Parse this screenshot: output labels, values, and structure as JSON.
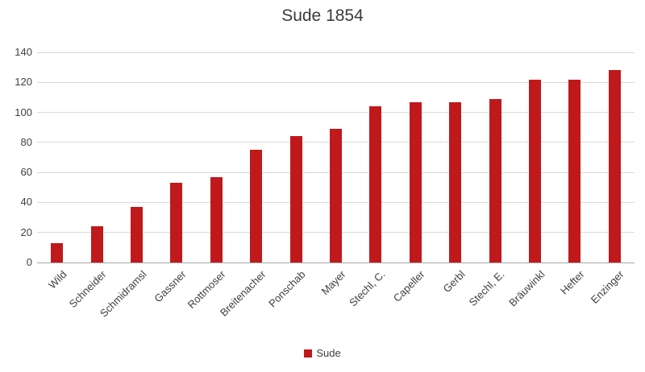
{
  "chart_data": {
    "type": "bar",
    "title": "Sude 1854",
    "series_name": "Sude",
    "categories": [
      "Wild",
      "Schneider",
      "Schmidramsl",
      "Gassner",
      "Rottmoser",
      "Breitenacher",
      "Ponschab",
      "Mayer",
      "Stechl, C.",
      "Capeller",
      "Gerbl",
      "Stechl, E.",
      "Bräuwinkl",
      "Hefter",
      "Enzinger"
    ],
    "values": [
      13,
      24,
      37,
      53,
      57,
      75,
      84,
      89,
      104,
      107,
      107,
      109,
      122,
      122,
      128
    ],
    "ylim": [
      0,
      140
    ],
    "ytick_step": 20,
    "ytick_labels": [
      "0",
      "20",
      "40",
      "60",
      "80",
      "100",
      "120",
      "140"
    ],
    "grid": true,
    "legend_position": "bottom",
    "colors": {
      "bar": "#c0191c",
      "gridline": "#d9d9d9",
      "axis_line": "#a6a6a6",
      "text": "#404040"
    }
  }
}
